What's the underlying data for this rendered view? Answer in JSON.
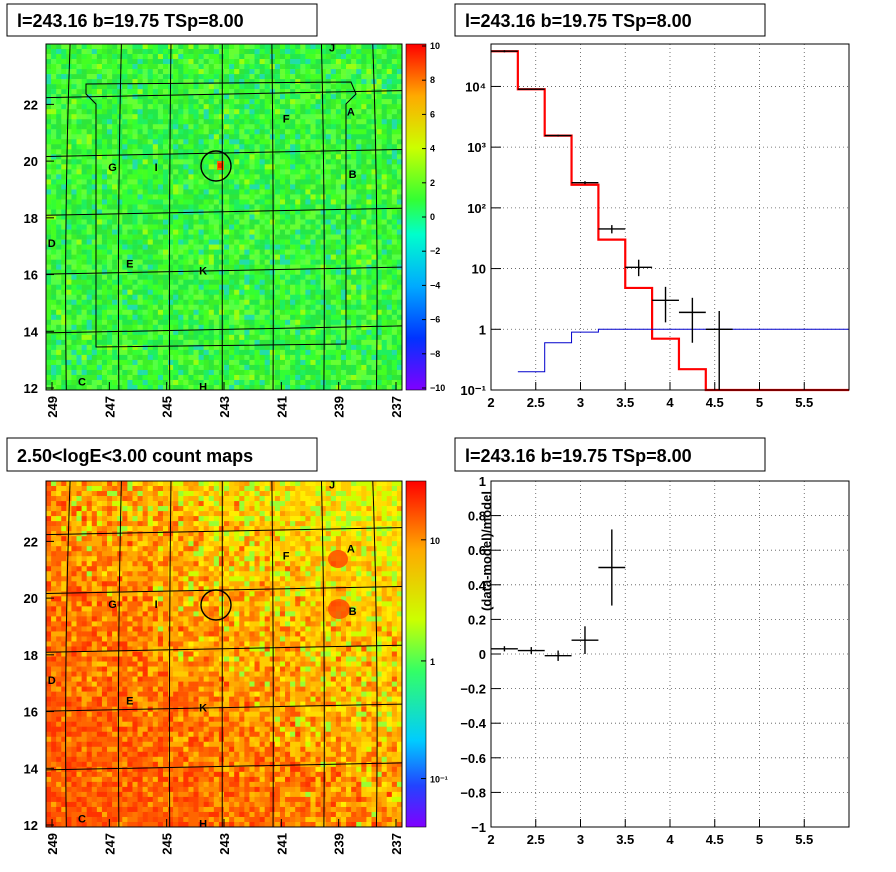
{
  "chart_data": [
    {
      "type": "heatmap",
      "title": "l=243.16 b=19.75 TSp=8.00",
      "x_ticks": [
        "249",
        "247",
        "245",
        "243",
        "241",
        "239",
        "237"
      ],
      "y_ticks": [
        "12",
        "14",
        "16",
        "18",
        "20",
        "22"
      ],
      "colorbar_ticks": [
        "10",
        "8",
        "6",
        "4",
        "2",
        "0",
        "−2",
        "−4",
        "−6",
        "−8",
        "−10"
      ],
      "colorbar_range": [
        -10,
        10
      ],
      "source_labels": [
        "J",
        "A",
        "F",
        "G",
        "I",
        "B",
        "D",
        "E",
        "K",
        "C",
        "H"
      ],
      "target_marker": {
        "l": 243.16,
        "b": 19.75
      }
    },
    {
      "type": "line",
      "title": "l=243.16 b=19.75 TSp=8.00",
      "xlim": [
        2,
        6
      ],
      "ylim_log": [
        0.1,
        50000
      ],
      "y_scale": "log",
      "x_ticks": [
        "2",
        "2.5",
        "3",
        "3.5",
        "4",
        "4.5",
        "5",
        "5.5"
      ],
      "y_ticks": [
        "10⁻¹",
        "1",
        "10",
        "10²",
        "10³",
        "10⁴"
      ],
      "series": [
        {
          "kind": "step",
          "color": "#ff0000",
          "x_edges": [
            2,
            2.3,
            2.6,
            2.9,
            3.2,
            3.5,
            3.8,
            4.1,
            4.4,
            6.0
          ],
          "values": [
            38000,
            9000,
            1550,
            240,
            30,
            4.8,
            0.7,
            0.22,
            0.1
          ]
        },
        {
          "kind": "step",
          "color": "#0000cc",
          "x_edges": [
            2.3,
            2.6,
            2.9,
            3.2,
            3.5,
            3.8,
            4.1,
            4.4,
            6.0
          ],
          "values": [
            0.2,
            0.6,
            0.9,
            1.0,
            1.0,
            1.0,
            1.0,
            1.0
          ]
        },
        {
          "kind": "errorbar",
          "color": "#000000",
          "x": [
            2.15,
            2.45,
            2.75,
            3.05,
            3.35,
            3.65,
            3.95,
            4.25,
            4.55
          ],
          "y": [
            38000,
            9000,
            1550,
            260,
            45,
            10.5,
            3.0,
            1.9,
            1.0
          ],
          "xerr": 0.15,
          "y_lo": [
            36500,
            8800,
            1500,
            245,
            38,
            7.5,
            1.3,
            0.6,
            0.1
          ],
          "y_hi": [
            39500,
            9200,
            1600,
            275,
            52,
            14,
            5.0,
            3.3,
            2.0
          ]
        }
      ]
    },
    {
      "type": "heatmap",
      "title": "2.50<logE<3.00 count maps",
      "x_ticks": [
        "249",
        "247",
        "245",
        "243",
        "241",
        "239",
        "237"
      ],
      "y_ticks": [
        "12",
        "14",
        "16",
        "18",
        "20",
        "22"
      ],
      "colorbar_ticks": [
        "10",
        "1",
        "10⁻¹"
      ],
      "colorbar_scale": "log",
      "source_labels": [
        "J",
        "A",
        "F",
        "G",
        "I",
        "B",
        "D",
        "E",
        "K",
        "C",
        "H"
      ]
    },
    {
      "type": "scatter",
      "title": "l=243.16 b=19.75 TSp=8.00",
      "ylabel": "(data-model)/model",
      "xlim": [
        2,
        6
      ],
      "ylim": [
        -1,
        1
      ],
      "x_ticks": [
        "2",
        "2.5",
        "3",
        "3.5",
        "4",
        "4.5",
        "5",
        "5.5"
      ],
      "y_ticks": [
        "−1",
        "−0.8",
        "−0.6",
        "−0.4",
        "−0.2",
        "0",
        "0.2",
        "0.4",
        "0.6",
        "0.8",
        "1"
      ],
      "points": [
        {
          "x": 2.15,
          "y": 0.03,
          "xerr": 0.15,
          "yerr": 0.015
        },
        {
          "x": 2.45,
          "y": 0.02,
          "xerr": 0.15,
          "yerr": 0.02
        },
        {
          "x": 2.75,
          "y": -0.01,
          "xerr": 0.15,
          "yerr": 0.03
        },
        {
          "x": 3.05,
          "y": 0.08,
          "xerr": 0.15,
          "yerr": 0.08
        },
        {
          "x": 3.35,
          "y": 0.5,
          "xerr": 0.15,
          "yerr": 0.22
        }
      ]
    }
  ]
}
